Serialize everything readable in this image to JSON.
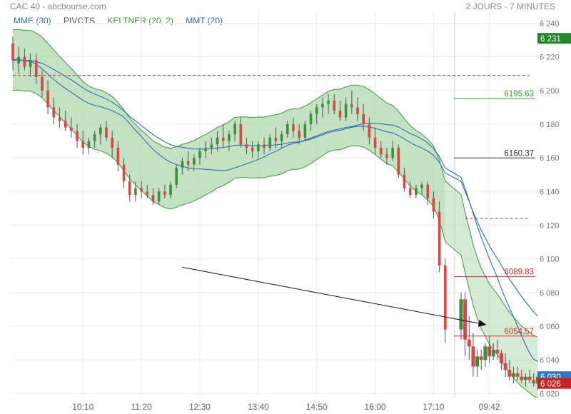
{
  "header": {
    "title": "CAC 40 - abcbourse.com",
    "period": "2 JOURS - 7 MINUTES"
  },
  "legend": [
    {
      "label": "MME (30)",
      "color": "#2e6db4"
    },
    {
      "label": "PIVOTS",
      "color": "#555555"
    },
    {
      "label": "KELTNER (20, 2)",
      "color": "#3a9a3a"
    },
    {
      "label": "MMT (20)",
      "color": "#2e6db4"
    }
  ],
  "chart_data": {
    "type": "candlestick",
    "title": "CAC 40",
    "y_ticks": [
      "6 240",
      "6 220",
      "6 200",
      "6 180",
      "6 160",
      "6 140",
      "6 120",
      "6 100",
      "6 080",
      "6 060",
      "6 040",
      "6 020"
    ],
    "y_tick_values": [
      6240,
      6220,
      6200,
      6180,
      6160,
      6140,
      6120,
      6100,
      6080,
      6060,
      6040,
      6020
    ],
    "ylim": [
      6018,
      6247
    ],
    "x_ticks": [
      "10:10",
      "11:20",
      "12:30",
      "13:40",
      "14:50",
      "16:00",
      "17:10",
      "09:42"
    ],
    "x_tick_bars": [
      12,
      22,
      32,
      42,
      52,
      62,
      72,
      82
    ],
    "day1_bar_count": 75,
    "bar_count": 95,
    "up_color": "#3b8f3b",
    "down_color": "#dd4444",
    "candles": [
      [
        6228,
        6232,
        6212,
        6218
      ],
      [
        6216,
        6226,
        6210,
        6220
      ],
      [
        6220,
        6225,
        6212,
        6214
      ],
      [
        6214,
        6222,
        6208,
        6218
      ],
      [
        6218,
        6222,
        6204,
        6208
      ],
      [
        6208,
        6212,
        6196,
        6200
      ],
      [
        6200,
        6206,
        6186,
        6190
      ],
      [
        6190,
        6196,
        6180,
        6184
      ],
      [
        6184,
        6190,
        6178,
        6182
      ],
      [
        6182,
        6188,
        6176,
        6178
      ],
      [
        6178,
        6184,
        6172,
        6176
      ],
      [
        6176,
        6180,
        6166,
        6170
      ],
      [
        6170,
        6176,
        6162,
        6166
      ],
      [
        6166,
        6172,
        6162,
        6170
      ],
      [
        6170,
        6176,
        6166,
        6174
      ],
      [
        6174,
        6180,
        6168,
        6178
      ],
      [
        6178,
        6182,
        6170,
        6172
      ],
      [
        6172,
        6176,
        6160,
        6166
      ],
      [
        6166,
        6170,
        6152,
        6156
      ],
      [
        6156,
        6160,
        6142,
        6146
      ],
      [
        6146,
        6150,
        6134,
        6138
      ],
      [
        6138,
        6146,
        6134,
        6142
      ],
      [
        6142,
        6146,
        6136,
        6140
      ],
      [
        6140,
        6144,
        6136,
        6138
      ],
      [
        6138,
        6142,
        6132,
        6134
      ],
      [
        6134,
        6142,
        6132,
        6140
      ],
      [
        6140,
        6144,
        6136,
        6138
      ],
      [
        6138,
        6146,
        6136,
        6144
      ],
      [
        6144,
        6156,
        6142,
        6154
      ],
      [
        6154,
        6160,
        6150,
        6158
      ],
      [
        6158,
        6164,
        6152,
        6156
      ],
      [
        6156,
        6162,
        6152,
        6160
      ],
      [
        6160,
        6166,
        6156,
        6164
      ],
      [
        6164,
        6170,
        6160,
        6166
      ],
      [
        6166,
        6172,
        6162,
        6168
      ],
      [
        6168,
        6176,
        6164,
        6172
      ],
      [
        6172,
        6180,
        6166,
        6170
      ],
      [
        6170,
        6176,
        6164,
        6174
      ],
      [
        6174,
        6182,
        6170,
        6180
      ],
      [
        6180,
        6184,
        6166,
        6168
      ],
      [
        6168,
        6172,
        6162,
        6166
      ],
      [
        6166,
        6170,
        6160,
        6164
      ],
      [
        6164,
        6170,
        6160,
        6168
      ],
      [
        6168,
        6172,
        6162,
        6166
      ],
      [
        6166,
        6174,
        6164,
        6172
      ],
      [
        6172,
        6178,
        6166,
        6170
      ],
      [
        6170,
        6176,
        6166,
        6174
      ],
      [
        6174,
        6182,
        6172,
        6180
      ],
      [
        6180,
        6184,
        6172,
        6176
      ],
      [
        6176,
        6180,
        6168,
        6172
      ],
      [
        6172,
        6182,
        6170,
        6180
      ],
      [
        6180,
        6188,
        6176,
        6186
      ],
      [
        6186,
        6192,
        6180,
        6190
      ],
      [
        6190,
        6196,
        6184,
        6192
      ],
      [
        6192,
        6198,
        6186,
        6194
      ],
      [
        6194,
        6198,
        6186,
        6188
      ],
      [
        6188,
        6194,
        6182,
        6184
      ],
      [
        6184,
        6196,
        6182,
        6192
      ],
      [
        6192,
        6200,
        6186,
        6190
      ],
      [
        6190,
        6196,
        6182,
        6186
      ],
      [
        6186,
        6192,
        6176,
        6180
      ],
      [
        6180,
        6184,
        6168,
        6172
      ],
      [
        6172,
        6178,
        6162,
        6166
      ],
      [
        6166,
        6170,
        6160,
        6162
      ],
      [
        6162,
        6166,
        6156,
        6160
      ],
      [
        6160,
        6170,
        6158,
        6166
      ],
      [
        6166,
        6168,
        6148,
        6150
      ],
      [
        6150,
        6154,
        6140,
        6142
      ],
      [
        6142,
        6146,
        6136,
        6138
      ],
      [
        6138,
        6144,
        6136,
        6142
      ],
      [
        6142,
        6146,
        6138,
        6144
      ],
      [
        6144,
        6146,
        6132,
        6136
      ],
      [
        6136,
        6140,
        6124,
        6128
      ],
      [
        6128,
        6134,
        6092,
        6096
      ],
      [
        6096,
        6100,
        6050,
        6058
      ],
      [
        6058,
        6080,
        6052,
        6076
      ],
      [
        6076,
        6080,
        6042,
        6052
      ],
      [
        6052,
        6066,
        6040,
        6048
      ],
      [
        6048,
        6056,
        6030,
        6036
      ],
      [
        6036,
        6046,
        6030,
        6042
      ],
      [
        6042,
        6046,
        6034,
        6040
      ],
      [
        6040,
        6050,
        6036,
        6048
      ],
      [
        6048,
        6054,
        6038,
        6042
      ],
      [
        6042,
        6050,
        6040,
        6046
      ],
      [
        6046,
        6052,
        6040,
        6044
      ],
      [
        6044,
        6046,
        6034,
        6038
      ],
      [
        6038,
        6044,
        6030,
        6034
      ],
      [
        6034,
        6040,
        6028,
        6030
      ],
      [
        6030,
        6036,
        6026,
        6032
      ],
      [
        6032,
        6036,
        6028,
        6030
      ],
      [
        6030,
        6034,
        6026,
        6028
      ],
      [
        6028,
        6032,
        6024,
        6030
      ],
      [
        6030,
        6034,
        6026,
        6028
      ],
      [
        6028,
        6032,
        6024,
        6026
      ],
      [
        6026,
        6032,
        6022,
        6030
      ]
    ],
    "pivot_lines": [
      {
        "value": 6209,
        "from_bar": 0,
        "to_bar": 95,
        "color": "#cc3333",
        "dashed": true
      },
      {
        "value": 6124,
        "from_bar": 76,
        "to_bar": 95,
        "color": "#cc3333",
        "dashed": true
      }
    ],
    "levels": [
      {
        "value": 6195.63,
        "label": "6195.63",
        "color": "#3a9a3a",
        "from_bar": 78
      },
      {
        "value": 6160.37,
        "label": "6160.37",
        "color": "#333333",
        "from_bar": 78
      },
      {
        "value": 6089.83,
        "label": "6089.83",
        "color": "#cc3333",
        "from_bar": 78
      },
      {
        "value": 6054.57,
        "label": "6054.57",
        "color": "#cc3333",
        "from_bar": 78
      }
    ],
    "price_badges": [
      {
        "value": 6231,
        "label": "6 231",
        "color": "#22882a"
      },
      {
        "value": 6030,
        "label": "6 030",
        "color": "#2f78c4"
      },
      {
        "value": 6026,
        "label": "6 026",
        "color": "#cc1f1f"
      }
    ],
    "annotation_arrow": {
      "from": [
        29,
        6095
      ],
      "to": [
        82,
        6061
      ]
    },
    "indicator_colors": {
      "keltner_fill": "#a9d6a6",
      "keltner_line": "#3a9a3a",
      "mme": "#2e6db4",
      "mmt": "#2e6db4"
    }
  }
}
